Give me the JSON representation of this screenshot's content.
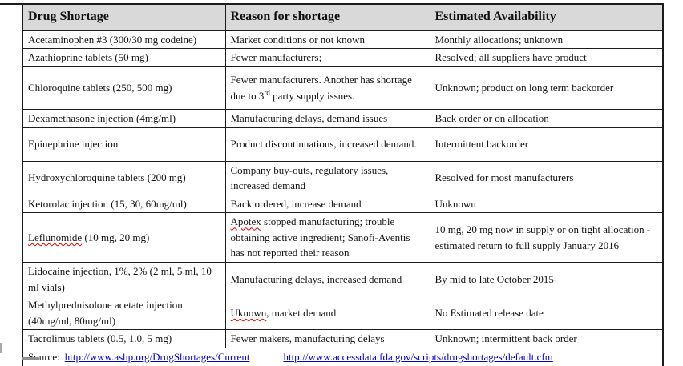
{
  "colors": {
    "header_bg": "#d9d9d9",
    "border": "#1c1c1c",
    "link": "#0000cc",
    "muted_text": "#7f7f7f",
    "squiggle": "#e00000"
  },
  "table": {
    "columns": [
      {
        "label": "Drug Shortage"
      },
      {
        "label": "Reason for shortage"
      },
      {
        "label": "Estimated Availability"
      }
    ],
    "rows": [
      {
        "drug": [
          {
            "text": "Acetaminophen #3 (300/30 mg codeine)"
          }
        ],
        "reason": [
          {
            "text": "Market conditions or not known"
          }
        ],
        "availability": [
          {
            "text": "Monthly allocations; unknown"
          }
        ]
      },
      {
        "drug": [
          {
            "text": "Azathioprine tablets (50 mg)"
          }
        ],
        "reason": [
          {
            "text": "Fewer manufacturers;"
          }
        ],
        "availability": [
          {
            "text": "Resolved; all suppliers have product"
          }
        ]
      },
      {
        "drug": [
          {
            "text": "Chloroquine tablets  (250, 500 mg)"
          }
        ],
        "reason": [
          {
            "text": "Fewer manufacturers. Another has shortage due to 3"
          },
          {
            "text": "rd",
            "sup": true
          },
          {
            "text": " party supply issues."
          }
        ],
        "availability": [
          {
            "text": "Unknown; product on long term backorder"
          }
        ]
      },
      {
        "drug": [
          {
            "text": "Dexamethasone injection (4mg/ml)"
          }
        ],
        "reason": [
          {
            "text": "Manufacturing delays, demand issues"
          }
        ],
        "availability": [
          {
            "text": "Back order or on allocation"
          }
        ]
      },
      {
        "drug": [
          {
            "text": "Epinephrine injection"
          }
        ],
        "reason": [
          {
            "text": "Product discontinuations, increased demand."
          }
        ],
        "availability": [
          {
            "text": "Intermittent backorder"
          }
        ]
      },
      {
        "drug": [
          {
            "text": "Hydroxychloroquine tablets (200 mg)"
          }
        ],
        "reason": [
          {
            "text": "Company buy-outs, regulatory issues, increased demand"
          }
        ],
        "availability": [
          {
            "text": "Resolved for most manufacturers"
          }
        ]
      },
      {
        "drug": [
          {
            "text": "Ketorolac injection (15, 30, 60mg/ml)"
          }
        ],
        "reason": [
          {
            "text": "Back ordered, increase demand"
          }
        ],
        "availability": [
          {
            "text": "Unknown"
          }
        ]
      },
      {
        "drug": [
          {
            "text": "Leflunomide",
            "squiggle": true
          },
          {
            "text": " (10 mg, 20 mg)"
          }
        ],
        "reason": [
          {
            "text": "Apotex",
            "squiggle": true
          },
          {
            "text": " stopped manufacturing; trouble obtaining active ingredient; Sanofi-Aventis has not reported their reason"
          }
        ],
        "availability": [
          {
            "text": "10 mg, 20 mg now in supply or on tight allocation - estimated return to full supply January 2016"
          }
        ]
      },
      {
        "drug": [
          {
            "text": "Lidocaine injection, 1%, 2% (2 ml, 5 ml, 10 ml vials)"
          }
        ],
        "reason": [
          {
            "text": "Manufacturing delays, increased demand"
          }
        ],
        "availability": [
          {
            "text": "By mid to late October 2015"
          }
        ]
      },
      {
        "muted": true,
        "drug": [
          {
            "text": "Methylprednisolone acetate injection (40mg/ml, 80mg/ml)"
          }
        ],
        "reason": [
          {
            "text": "Uknown",
            "squiggle": true
          },
          {
            "text": ", market demand"
          }
        ],
        "availability": [
          {
            "text": "No Estimated release date"
          }
        ]
      },
      {
        "drug": [
          {
            "text": "Tacrolimus tablets (0.5, 1.0, 5 mg)"
          }
        ],
        "reason": [
          {
            "text": "Fewer makers, manufacturing delays"
          }
        ],
        "availability": [
          {
            "text": "Unknown; intermittent back order"
          }
        ]
      }
    ],
    "source": {
      "label": "Source:",
      "links": [
        "http://www.ashp.org/DrugShortages/Current",
        "http://www.accessdata.fda.gov/scripts/drugshortages/default.cfm"
      ]
    }
  }
}
